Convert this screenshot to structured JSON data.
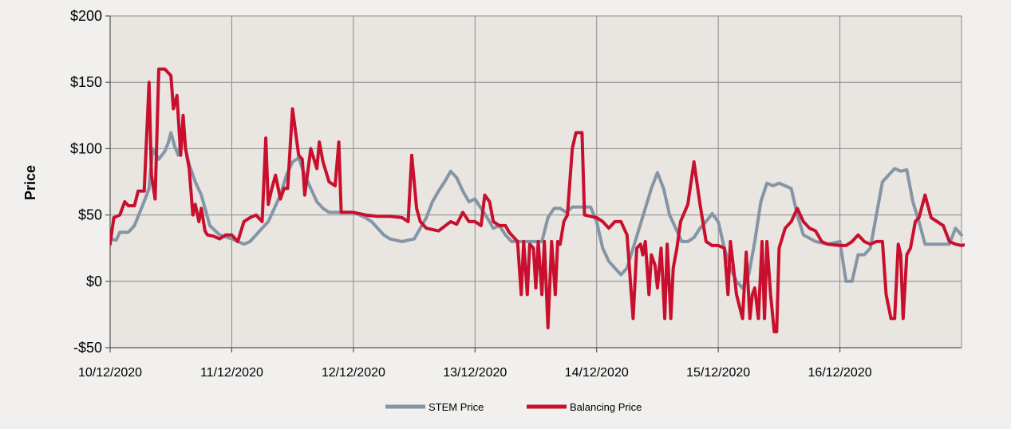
{
  "chart_data": {
    "type": "line",
    "title": "",
    "xlabel": "",
    "ylabel": "Price",
    "ylim": [
      -50,
      200
    ],
    "yticks": [
      -50,
      0,
      50,
      100,
      150,
      200
    ],
    "ytick_labels": [
      "-$50",
      "$0",
      "$50",
      "$100",
      "$150",
      "$200"
    ],
    "xlim": [
      0,
      7
    ],
    "xticks": [
      0,
      1,
      2,
      3,
      4,
      5,
      6
    ],
    "xtick_labels": [
      "10/12/2020",
      "11/12/2020",
      "12/12/2020",
      "13/12/2020",
      "14/12/2020",
      "15/12/2020",
      "16/12/2020"
    ],
    "x_unit": "days since 10/12/2020",
    "grid": true,
    "legend_position": "bottom-center",
    "plot_background": "#e9e5e0",
    "page_background": "#f1f0ee",
    "series": [
      {
        "name": "STEM Price",
        "color": "#8496a6",
        "points": [
          [
            0.0,
            32
          ],
          [
            0.05,
            31
          ],
          [
            0.08,
            37
          ],
          [
            0.15,
            37
          ],
          [
            0.2,
            42
          ],
          [
            0.27,
            58
          ],
          [
            0.3,
            65
          ],
          [
            0.32,
            70
          ],
          [
            0.35,
            100
          ],
          [
            0.4,
            92
          ],
          [
            0.45,
            98
          ],
          [
            0.48,
            105
          ],
          [
            0.5,
            112
          ],
          [
            0.53,
            102
          ],
          [
            0.56,
            95
          ],
          [
            0.6,
            115
          ],
          [
            0.62,
            100
          ],
          [
            0.65,
            88
          ],
          [
            0.7,
            75
          ],
          [
            0.75,
            65
          ],
          [
            0.78,
            55
          ],
          [
            0.82,
            42
          ],
          [
            0.9,
            35
          ],
          [
            1.0,
            32
          ],
          [
            1.1,
            28
          ],
          [
            1.15,
            30
          ],
          [
            1.2,
            35
          ],
          [
            1.25,
            40
          ],
          [
            1.3,
            45
          ],
          [
            1.35,
            55
          ],
          [
            1.4,
            65
          ],
          [
            1.45,
            80
          ],
          [
            1.5,
            90
          ],
          [
            1.55,
            93
          ],
          [
            1.6,
            80
          ],
          [
            1.65,
            70
          ],
          [
            1.7,
            60
          ],
          [
            1.75,
            55
          ],
          [
            1.8,
            52
          ],
          [
            1.9,
            52
          ],
          [
            2.0,
            52
          ],
          [
            2.05,
            50
          ],
          [
            2.1,
            48
          ],
          [
            2.15,
            45
          ],
          [
            2.2,
            40
          ],
          [
            2.25,
            35
          ],
          [
            2.3,
            32
          ],
          [
            2.4,
            30
          ],
          [
            2.5,
            32
          ],
          [
            2.55,
            40
          ],
          [
            2.6,
            48
          ],
          [
            2.65,
            60
          ],
          [
            2.7,
            68
          ],
          [
            2.75,
            75
          ],
          [
            2.8,
            83
          ],
          [
            2.85,
            78
          ],
          [
            2.9,
            68
          ],
          [
            2.95,
            60
          ],
          [
            3.0,
            62
          ],
          [
            3.05,
            55
          ],
          [
            3.1,
            48
          ],
          [
            3.15,
            40
          ],
          [
            3.2,
            42
          ],
          [
            3.25,
            35
          ],
          [
            3.3,
            30
          ],
          [
            3.4,
            30
          ],
          [
            3.5,
            30
          ],
          [
            3.55,
            30
          ],
          [
            3.6,
            48
          ],
          [
            3.65,
            55
          ],
          [
            3.7,
            55
          ],
          [
            3.75,
            52
          ],
          [
            3.8,
            56
          ],
          [
            3.85,
            56
          ],
          [
            3.9,
            56
          ],
          [
            3.95,
            56
          ],
          [
            4.0,
            45
          ],
          [
            4.05,
            25
          ],
          [
            4.1,
            15
          ],
          [
            4.15,
            10
          ],
          [
            4.2,
            5
          ],
          [
            4.25,
            10
          ],
          [
            4.3,
            25
          ],
          [
            4.35,
            40
          ],
          [
            4.4,
            55
          ],
          [
            4.45,
            70
          ],
          [
            4.5,
            82
          ],
          [
            4.55,
            70
          ],
          [
            4.6,
            50
          ],
          [
            4.7,
            30
          ],
          [
            4.75,
            30
          ],
          [
            4.8,
            33
          ],
          [
            4.85,
            40
          ],
          [
            4.9,
            45
          ],
          [
            4.95,
            51
          ],
          [
            5.0,
            45
          ],
          [
            5.05,
            25
          ],
          [
            5.1,
            10
          ],
          [
            5.15,
            0
          ],
          [
            5.2,
            -5
          ],
          [
            5.25,
            5
          ],
          [
            5.3,
            30
          ],
          [
            5.35,
            60
          ],
          [
            5.4,
            74
          ],
          [
            5.45,
            72
          ],
          [
            5.5,
            74
          ],
          [
            5.55,
            72
          ],
          [
            5.6,
            70
          ],
          [
            5.65,
            50
          ],
          [
            5.7,
            35
          ],
          [
            5.8,
            30
          ],
          [
            5.9,
            28
          ],
          [
            6.0,
            30
          ],
          [
            6.05,
            0
          ],
          [
            6.1,
            0
          ],
          [
            6.15,
            20
          ],
          [
            6.2,
            20
          ],
          [
            6.25,
            25
          ],
          [
            6.3,
            50
          ],
          [
            6.35,
            75
          ],
          [
            6.4,
            80
          ],
          [
            6.45,
            85
          ],
          [
            6.5,
            83
          ],
          [
            6.55,
            84
          ],
          [
            6.6,
            60
          ],
          [
            6.65,
            45
          ],
          [
            6.7,
            28
          ],
          [
            6.8,
            28
          ],
          [
            6.9,
            28
          ],
          [
            6.95,
            40
          ],
          [
            7.0,
            35
          ]
        ]
      },
      {
        "name": "Balancing Price",
        "color": "#c8102e",
        "points": [
          [
            0.0,
            28
          ],
          [
            0.03,
            48
          ],
          [
            0.08,
            50
          ],
          [
            0.12,
            60
          ],
          [
            0.15,
            57
          ],
          [
            0.2,
            57
          ],
          [
            0.23,
            68
          ],
          [
            0.28,
            68
          ],
          [
            0.32,
            150
          ],
          [
            0.34,
            80
          ],
          [
            0.37,
            62
          ],
          [
            0.4,
            160
          ],
          [
            0.45,
            160
          ],
          [
            0.5,
            155
          ],
          [
            0.52,
            130
          ],
          [
            0.55,
            140
          ],
          [
            0.58,
            95
          ],
          [
            0.6,
            125
          ],
          [
            0.62,
            100
          ],
          [
            0.65,
            85
          ],
          [
            0.68,
            50
          ],
          [
            0.7,
            58
          ],
          [
            0.73,
            45
          ],
          [
            0.75,
            55
          ],
          [
            0.78,
            38
          ],
          [
            0.8,
            35
          ],
          [
            0.85,
            34
          ],
          [
            0.9,
            32
          ],
          [
            0.95,
            35
          ],
          [
            1.0,
            35
          ],
          [
            1.05,
            30
          ],
          [
            1.1,
            45
          ],
          [
            1.15,
            48
          ],
          [
            1.2,
            50
          ],
          [
            1.25,
            45
          ],
          [
            1.28,
            108
          ],
          [
            1.3,
            58
          ],
          [
            1.33,
            70
          ],
          [
            1.36,
            80
          ],
          [
            1.4,
            62
          ],
          [
            1.43,
            70
          ],
          [
            1.46,
            70
          ],
          [
            1.5,
            130
          ],
          [
            1.55,
            95
          ],
          [
            1.58,
            92
          ],
          [
            1.6,
            65
          ],
          [
            1.65,
            100
          ],
          [
            1.7,
            85
          ],
          [
            1.72,
            105
          ],
          [
            1.75,
            90
          ],
          [
            1.8,
            75
          ],
          [
            1.85,
            72
          ],
          [
            1.88,
            105
          ],
          [
            1.9,
            52
          ],
          [
            2.0,
            52
          ],
          [
            2.1,
            50
          ],
          [
            2.2,
            49
          ],
          [
            2.3,
            49
          ],
          [
            2.4,
            48
          ],
          [
            2.45,
            45
          ],
          [
            2.48,
            95
          ],
          [
            2.52,
            55
          ],
          [
            2.55,
            45
          ],
          [
            2.6,
            40
          ],
          [
            2.7,
            38
          ],
          [
            2.8,
            45
          ],
          [
            2.85,
            43
          ],
          [
            2.9,
            52
          ],
          [
            2.95,
            45
          ],
          [
            3.0,
            45
          ],
          [
            3.05,
            42
          ],
          [
            3.08,
            65
          ],
          [
            3.12,
            60
          ],
          [
            3.15,
            45
          ],
          [
            3.2,
            42
          ],
          [
            3.25,
            42
          ],
          [
            3.28,
            37
          ],
          [
            3.3,
            35
          ],
          [
            3.35,
            30
          ],
          [
            3.38,
            -10
          ],
          [
            3.4,
            30
          ],
          [
            3.43,
            -10
          ],
          [
            3.45,
            28
          ],
          [
            3.48,
            25
          ],
          [
            3.5,
            -5
          ],
          [
            3.52,
            30
          ],
          [
            3.55,
            -10
          ],
          [
            3.57,
            30
          ],
          [
            3.6,
            -35
          ],
          [
            3.63,
            30
          ],
          [
            3.66,
            -10
          ],
          [
            3.68,
            30
          ],
          [
            3.7,
            28
          ],
          [
            3.73,
            45
          ],
          [
            3.76,
            50
          ],
          [
            3.8,
            100
          ],
          [
            3.83,
            112
          ],
          [
            3.85,
            112
          ],
          [
            3.88,
            112
          ],
          [
            3.9,
            50
          ],
          [
            4.0,
            48
          ],
          [
            4.05,
            45
          ],
          [
            4.1,
            40
          ],
          [
            4.15,
            45
          ],
          [
            4.2,
            45
          ],
          [
            4.25,
            35
          ],
          [
            4.3,
            -28
          ],
          [
            4.33,
            25
          ],
          [
            4.36,
            28
          ],
          [
            4.38,
            20
          ],
          [
            4.4,
            30
          ],
          [
            4.43,
            -10
          ],
          [
            4.45,
            20
          ],
          [
            4.48,
            12
          ],
          [
            4.5,
            -5
          ],
          [
            4.53,
            25
          ],
          [
            4.56,
            -28
          ],
          [
            4.58,
            28
          ],
          [
            4.61,
            -28
          ],
          [
            4.63,
            10
          ],
          [
            4.66,
            25
          ],
          [
            4.69,
            45
          ],
          [
            4.75,
            58
          ],
          [
            4.8,
            90
          ],
          [
            4.85,
            58
          ],
          [
            4.9,
            30
          ],
          [
            4.95,
            27
          ],
          [
            5.0,
            27
          ],
          [
            5.05,
            25
          ],
          [
            5.08,
            -10
          ],
          [
            5.1,
            30
          ],
          [
            5.15,
            -10
          ],
          [
            5.2,
            -28
          ],
          [
            5.23,
            22
          ],
          [
            5.26,
            -28
          ],
          [
            5.28,
            -10
          ],
          [
            5.3,
            -5
          ],
          [
            5.33,
            -28
          ],
          [
            5.36,
            30
          ],
          [
            5.38,
            -28
          ],
          [
            5.4,
            30
          ],
          [
            5.43,
            -10
          ],
          [
            5.46,
            -38
          ],
          [
            5.48,
            -38
          ],
          [
            5.5,
            25
          ],
          [
            5.55,
            40
          ],
          [
            5.6,
            45
          ],
          [
            5.65,
            55
          ],
          [
            5.7,
            45
          ],
          [
            5.75,
            40
          ],
          [
            5.8,
            38
          ],
          [
            5.85,
            30
          ],
          [
            5.9,
            28
          ],
          [
            6.0,
            27
          ],
          [
            6.05,
            27
          ],
          [
            6.1,
            30
          ],
          [
            6.15,
            35
          ],
          [
            6.2,
            30
          ],
          [
            6.25,
            28
          ],
          [
            6.3,
            30
          ],
          [
            6.35,
            30
          ],
          [
            6.38,
            -10
          ],
          [
            6.42,
            -28
          ],
          [
            6.45,
            -28
          ],
          [
            6.48,
            28
          ],
          [
            6.5,
            20
          ],
          [
            6.52,
            -28
          ],
          [
            6.55,
            20
          ],
          [
            6.58,
            25
          ],
          [
            6.62,
            45
          ],
          [
            6.65,
            48
          ],
          [
            6.7,
            65
          ],
          [
            6.75,
            48
          ],
          [
            6.8,
            45
          ],
          [
            6.85,
            42
          ],
          [
            6.9,
            30
          ],
          [
            6.95,
            28
          ],
          [
            7.0,
            27
          ],
          [
            7.05,
            28
          ],
          [
            7.1,
            30
          ],
          [
            7.15,
            37
          ],
          [
            7.2,
            30
          ]
        ]
      }
    ]
  }
}
